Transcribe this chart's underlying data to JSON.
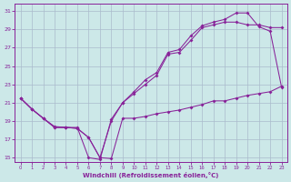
{
  "xlabel": "Windchill (Refroidissement éolien,°C)",
  "background_color": "#cce8e8",
  "grid_color": "#aabbcc",
  "line_color": "#882299",
  "xlim_min": -0.5,
  "xlim_max": 23.5,
  "ylim_min": 14.5,
  "ylim_max": 31.8,
  "xticks": [
    0,
    1,
    2,
    3,
    4,
    5,
    6,
    7,
    8,
    9,
    10,
    11,
    12,
    13,
    14,
    15,
    16,
    17,
    18,
    19,
    20,
    21,
    22,
    23
  ],
  "yticks": [
    15,
    17,
    19,
    21,
    23,
    25,
    27,
    29,
    31
  ],
  "line1_x": [
    0,
    1,
    2,
    3,
    4,
    5,
    6,
    7,
    8,
    9,
    10,
    11,
    12,
    13,
    14,
    15,
    16,
    17,
    18,
    19,
    20,
    21,
    22,
    23
  ],
  "line1_y": [
    21.5,
    20.3,
    19.3,
    18.3,
    18.3,
    18.3,
    15.0,
    14.8,
    19.2,
    21.0,
    22.2,
    23.5,
    24.3,
    26.5,
    26.8,
    28.3,
    29.4,
    29.8,
    30.1,
    30.8,
    30.8,
    29.3,
    28.8,
    22.7
  ],
  "line2_x": [
    0,
    1,
    2,
    3,
    4,
    5,
    6,
    7,
    8,
    9,
    10,
    11,
    12,
    13,
    14,
    15,
    16,
    17,
    18,
    19,
    20,
    21,
    22,
    23
  ],
  "line2_y": [
    21.5,
    20.3,
    19.3,
    18.3,
    18.3,
    18.2,
    17.2,
    15.0,
    19.0,
    21.0,
    22.0,
    23.0,
    24.0,
    26.3,
    26.5,
    27.8,
    29.2,
    29.5,
    29.8,
    29.8,
    29.5,
    29.5,
    29.2,
    29.2
  ],
  "line3_x": [
    0,
    1,
    2,
    3,
    4,
    5,
    6,
    7,
    8,
    9,
    10,
    11,
    12,
    13,
    14,
    15,
    16,
    17,
    18,
    19,
    20,
    21,
    22,
    23
  ],
  "line3_y": [
    21.5,
    20.3,
    19.3,
    18.4,
    18.3,
    18.2,
    17.2,
    15.0,
    14.9,
    19.3,
    19.3,
    19.5,
    19.8,
    20.0,
    20.2,
    20.5,
    20.8,
    21.2,
    21.2,
    21.5,
    21.8,
    22.0,
    22.2,
    22.8
  ]
}
